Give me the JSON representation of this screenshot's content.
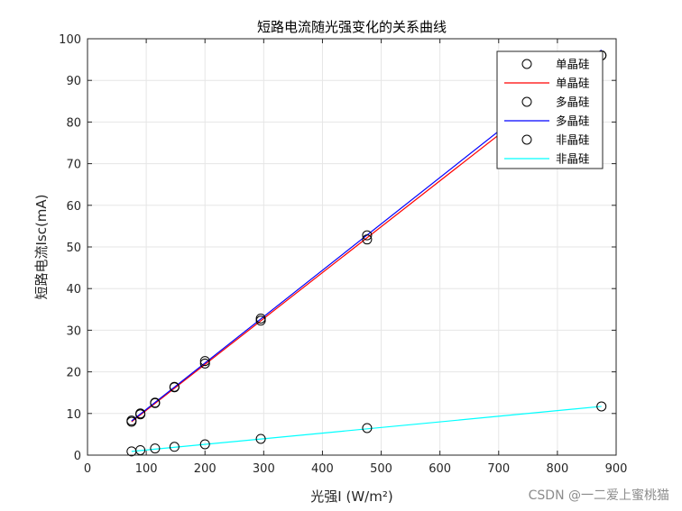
{
  "watermark": "CSDN @一二爱上蜜桃猫",
  "chart_data": {
    "type": "line",
    "title": "短路电流随光强变化的关系曲线",
    "xlabel": "光强I  (W/m²)",
    "ylabel": "短路电流Isc(mA)",
    "xlim": [
      0,
      900
    ],
    "ylim": [
      0,
      100
    ],
    "xticks": [
      0,
      100,
      200,
      300,
      400,
      500,
      600,
      700,
      800,
      900
    ],
    "yticks": [
      0,
      10,
      20,
      30,
      40,
      50,
      60,
      70,
      80,
      90,
      100
    ],
    "grid": true,
    "legend_position": "top-right",
    "legend": [
      {
        "label": "单晶硅",
        "kind": "marker",
        "color": "#000000"
      },
      {
        "label": "单晶硅",
        "kind": "line",
        "color": "#ff0000"
      },
      {
        "label": "多晶硅",
        "kind": "marker",
        "color": "#000000"
      },
      {
        "label": "多晶硅",
        "kind": "line",
        "color": "#0000ff"
      },
      {
        "label": "非晶硅",
        "kind": "marker",
        "color": "#000000"
      },
      {
        "label": "非晶硅",
        "kind": "line",
        "color": "#00ffff"
      }
    ],
    "series": [
      {
        "name": "单晶硅",
        "color": "#ff0000",
        "marker_color": "#000000",
        "points": [
          [
            75,
            8.0
          ],
          [
            90,
            9.8
          ],
          [
            115,
            12.5
          ],
          [
            148,
            16.3
          ],
          [
            200,
            22.0
          ],
          [
            295,
            32.3
          ],
          [
            476,
            51.8
          ],
          [
            875,
            96.0
          ]
        ],
        "fit": [
          [
            75,
            8.0
          ],
          [
            875,
            96.2
          ]
        ]
      },
      {
        "name": "多晶硅",
        "color": "#0000ff",
        "marker_color": "#000000",
        "points": [
          [
            75,
            8.3
          ],
          [
            90,
            10.0
          ],
          [
            115,
            12.6
          ],
          [
            148,
            16.4
          ],
          [
            200,
            22.6
          ],
          [
            295,
            32.8
          ],
          [
            476,
            52.8
          ],
          [
            875,
            96.0
          ]
        ],
        "fit": [
          [
            75,
            8.2
          ],
          [
            875,
            97.3
          ]
        ]
      },
      {
        "name": "非晶硅",
        "color": "#00ffff",
        "marker_color": "#000000",
        "points": [
          [
            75,
            0.9
          ],
          [
            90,
            1.2
          ],
          [
            115,
            1.6
          ],
          [
            148,
            2.0
          ],
          [
            200,
            2.6
          ],
          [
            295,
            3.9
          ],
          [
            476,
            6.5
          ],
          [
            875,
            11.7
          ]
        ],
        "fit": [
          [
            75,
            0.9
          ],
          [
            875,
            11.7
          ]
        ]
      }
    ]
  }
}
